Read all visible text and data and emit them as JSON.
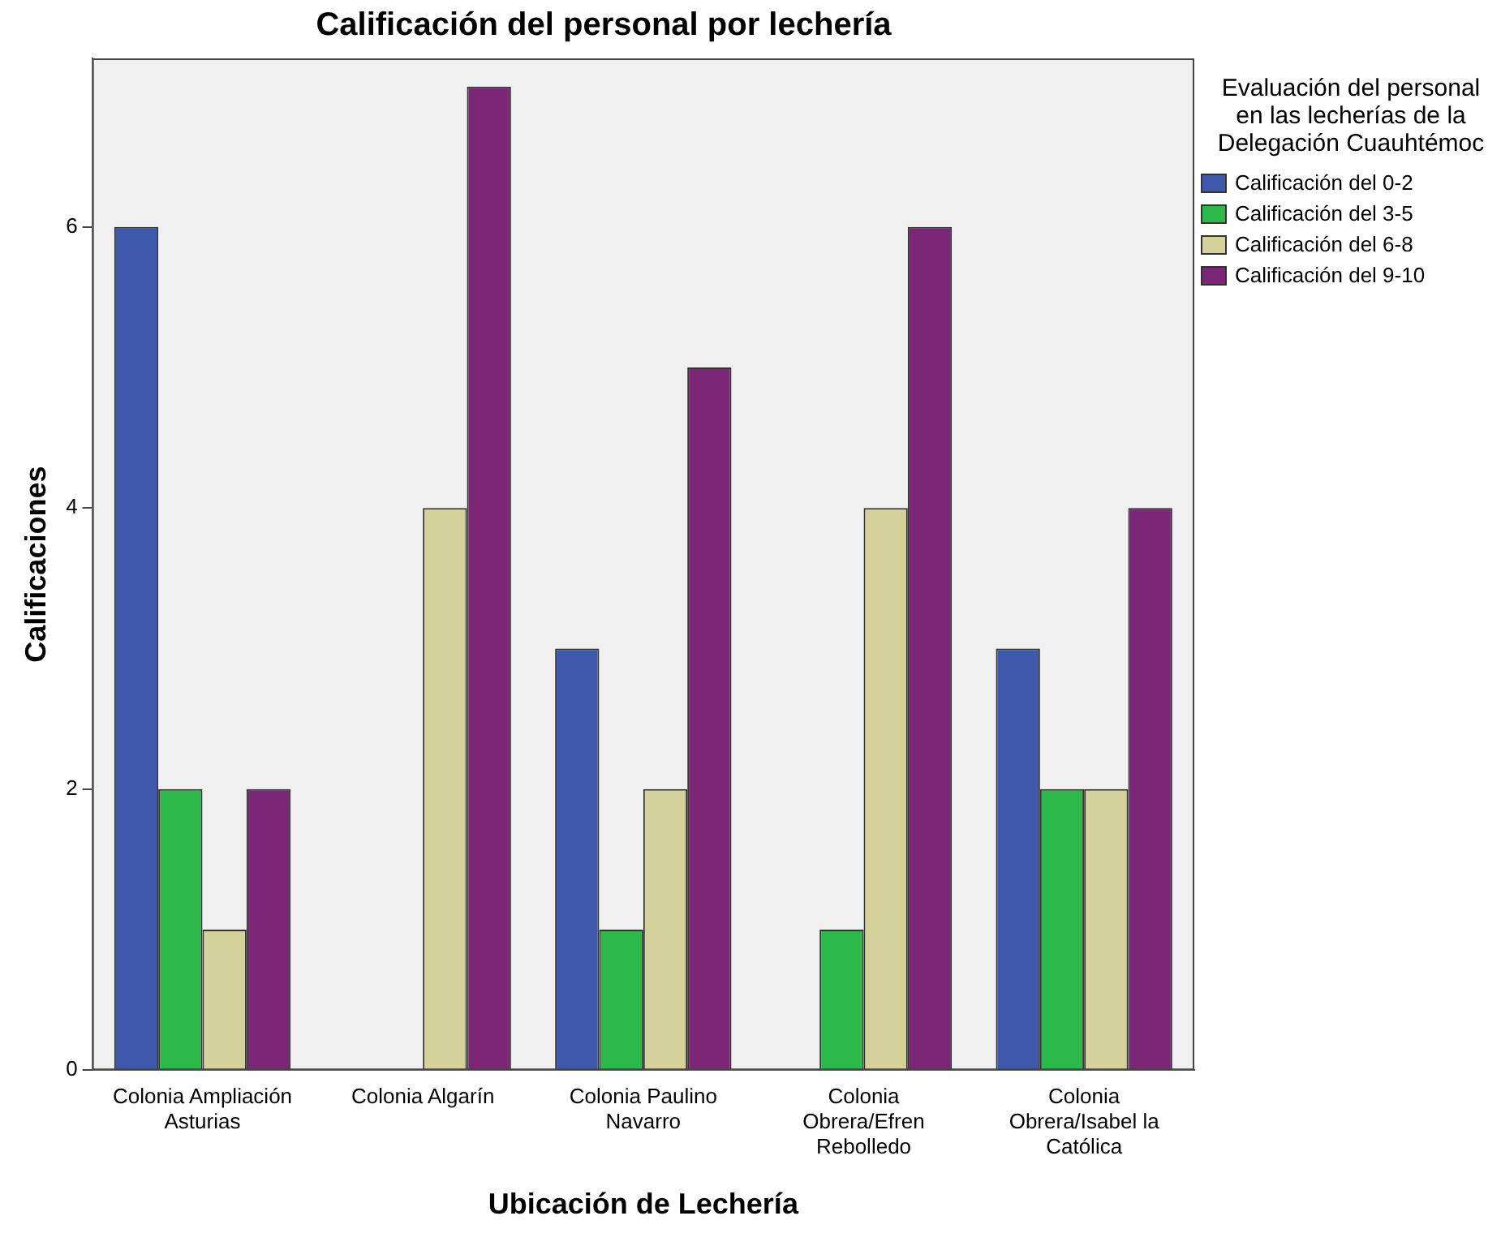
{
  "chart_data": {
    "type": "bar",
    "title": "Calificación del personal por lechería",
    "xlabel": "Ubicación de Lechería",
    "ylabel": "Calificaciones",
    "legend_title": "Evaluación del personal en las lecherías de la Delegación Cuauhtémoc",
    "legend": "right",
    "categories": [
      "Colonia Ampliación Asturias",
      "Colonia Algarín",
      "Colonia Paulino Navarro",
      "Colonia Obrera/Efren Rebolledo",
      "Colonia Obrera/Isabel la Católica"
    ],
    "series": [
      {
        "name": "Calificación del 0-2",
        "color": "#3e58ac",
        "values": [
          6,
          null,
          3,
          null,
          3
        ]
      },
      {
        "name": "Calificación del 3-5",
        "color": "#2db84a",
        "values": [
          2,
          null,
          1,
          1,
          2
        ]
      },
      {
        "name": "Calificación del 6-8",
        "color": "#d5d19b",
        "values": [
          1,
          4,
          2,
          4,
          2
        ]
      },
      {
        "name": "Calificación del 9-10",
        "color": "#7b2677",
        "values": [
          2,
          7,
          5,
          6,
          4
        ]
      }
    ],
    "ylim": [
      0,
      7.2
    ],
    "yticks": [
      0,
      2,
      4,
      6
    ],
    "grid": false
  }
}
